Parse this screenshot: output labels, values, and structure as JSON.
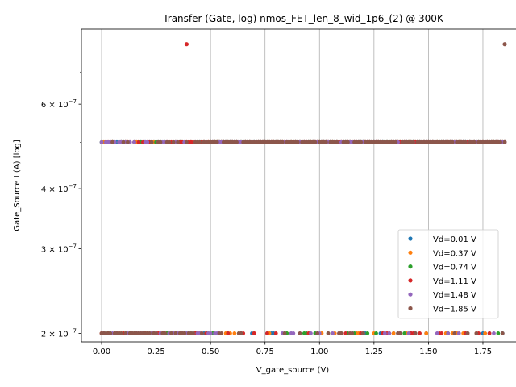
{
  "chart_data": {
    "type": "scatter",
    "title": "Transfer (Gate, log) nmos_FET_len_8_wid_1p6_(2) @ 300K",
    "xlabel": "V_gate_source (V)",
    "ylabel": "Gate_Source I (A) [log]",
    "xlim": [
      -0.0925,
      1.9425
    ],
    "ylim": [
      1.92e-07,
      8.6e-07
    ],
    "yscale": "log",
    "grid": "vertical",
    "legend_position": "lower-right",
    "x_ticks": [
      {
        "value": 0.0,
        "label": "0.00"
      },
      {
        "value": 0.25,
        "label": "0.25"
      },
      {
        "value": 0.5,
        "label": "0.50"
      },
      {
        "value": 0.75,
        "label": "0.75"
      },
      {
        "value": 1.0,
        "label": "1.00"
      },
      {
        "value": 1.25,
        "label": "1.25"
      },
      {
        "value": 1.5,
        "label": "1.50"
      },
      {
        "value": 1.75,
        "label": "1.75"
      }
    ],
    "y_ticks": [
      {
        "value": 2e-07,
        "mantissa": "2",
        "exp": "−7"
      },
      {
        "value": 3e-07,
        "mantissa": "3",
        "exp": "−7"
      },
      {
        "value": 4e-07,
        "mantissa": "4",
        "exp": "−7"
      },
      {
        "value": 6e-07,
        "mantissa": "6",
        "exp": "−7"
      }
    ],
    "y_ticks_unlabeled": [
      5e-07,
      7e-07,
      8e-07
    ],
    "levels": {
      "low": 2e-07,
      "high": 5e-07,
      "outlier": 8e-07
    },
    "sweep": {
      "start": 0.0,
      "stop": 1.85,
      "points": 186
    },
    "series": [
      {
        "name": "Vd=0.01 V",
        "color": "#1f77b4",
        "low_seed": 11,
        "low_fraction": 0.14,
        "outliers": []
      },
      {
        "name": "Vd=0.37 V",
        "color": "#ff7f0e",
        "low_seed": 23,
        "low_fraction": 0.14,
        "outliers": []
      },
      {
        "name": "Vd=0.74 V",
        "color": "#2ca02c",
        "low_seed": 37,
        "low_fraction": 0.14,
        "outliers": []
      },
      {
        "name": "Vd=1.11 V",
        "color": "#d62728",
        "low_seed": 53,
        "low_fraction": 0.16,
        "outliers": [
          0.39
        ]
      },
      {
        "name": "Vd=1.48 V",
        "color": "#9467bd",
        "low_seed": 71,
        "low_fraction": 0.16,
        "outliers": []
      },
      {
        "name": "Vd=1.85 V",
        "color": "#8c564b",
        "low_seed": 97,
        "low_fraction": 0.16,
        "outliers": [
          1.85
        ]
      }
    ]
  }
}
